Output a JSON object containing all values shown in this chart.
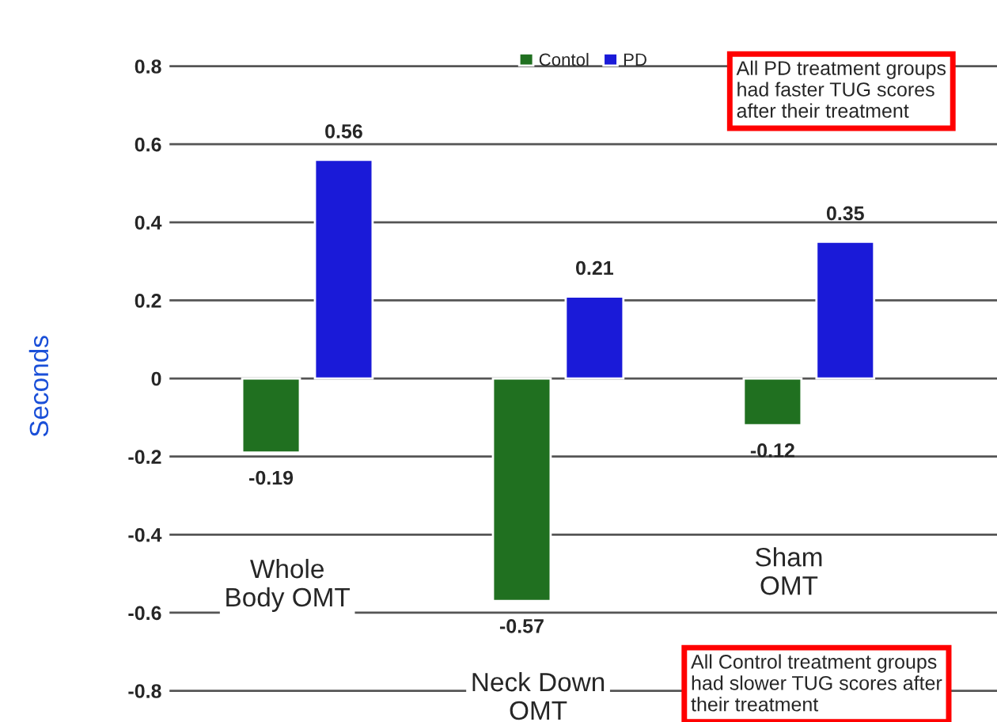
{
  "chart_data": {
    "type": "bar",
    "ylabel": "Seconds",
    "categories": [
      "Whole\nBody OMT",
      "Neck Down\nOMT",
      "Sham\nOMT"
    ],
    "series": [
      {
        "name": "Contol",
        "color": "#207020",
        "values": [
          -0.19,
          -0.57,
          -0.12
        ]
      },
      {
        "name": "PD",
        "color": "#1a1ad8",
        "values": [
          0.56,
          0.21,
          0.35
        ]
      }
    ],
    "ylim": [
      -0.88,
      0.84
    ],
    "yticks": [
      -0.8,
      -0.6,
      -0.4,
      -0.2,
      0,
      0.2,
      0.4,
      0.6,
      0.8
    ],
    "grid": "y",
    "legend": "top",
    "data_labels": true,
    "annotations": [
      "All PD treatment groups\nhad faster TUG scores\nafter their treatment",
      "All Control treatment groups\nhad slower TUG scores after\ntheir treatment"
    ]
  }
}
